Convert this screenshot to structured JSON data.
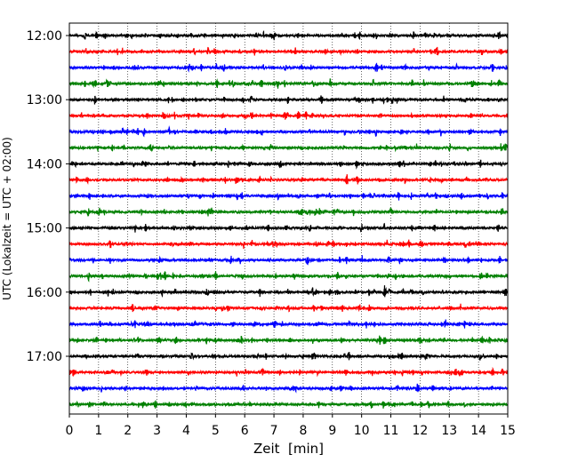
{
  "chart_data": {
    "type": "line",
    "title": "",
    "xlabel": "Zeit  [min]",
    "ylabel": "UTC (Lokalzeit = UTC + 02:00)",
    "xlim": [
      0,
      15
    ],
    "x_ticks": [
      "0",
      "1",
      "2",
      "3",
      "4",
      "5",
      "6",
      "7",
      "8",
      "9",
      "10",
      "11",
      "12",
      "13",
      "14",
      "15"
    ],
    "y_tick_labels": [
      "12:00",
      "13:00",
      "14:00",
      "15:00",
      "16:00",
      "17:00"
    ],
    "grid": "vertical dotted",
    "row_interval_minutes": 15,
    "trace_colors": [
      "#000000",
      "#ff0000",
      "#0000ff",
      "#008000"
    ],
    "traces": [
      {
        "start": "12:00",
        "color": "#000000"
      },
      {
        "start": "12:15",
        "color": "#ff0000"
      },
      {
        "start": "12:30",
        "color": "#0000ff"
      },
      {
        "start": "12:45",
        "color": "#008000"
      },
      {
        "start": "13:00",
        "color": "#000000"
      },
      {
        "start": "13:15",
        "color": "#ff0000"
      },
      {
        "start": "13:30",
        "color": "#0000ff"
      },
      {
        "start": "13:45",
        "color": "#008000"
      },
      {
        "start": "14:00",
        "color": "#000000"
      },
      {
        "start": "14:15",
        "color": "#ff0000",
        "events": [
          {
            "minute": 9.5,
            "amplitude": "large"
          }
        ]
      },
      {
        "start": "14:30",
        "color": "#0000ff"
      },
      {
        "start": "14:45",
        "color": "#008000"
      },
      {
        "start": "15:00",
        "color": "#000000"
      },
      {
        "start": "15:15",
        "color": "#ff0000"
      },
      {
        "start": "15:30",
        "color": "#0000ff"
      },
      {
        "start": "15:45",
        "color": "#008000"
      },
      {
        "start": "16:00",
        "color": "#000000",
        "events": [
          {
            "minute": 10.8,
            "amplitude": "large"
          }
        ]
      },
      {
        "start": "16:15",
        "color": "#ff0000"
      },
      {
        "start": "16:30",
        "color": "#0000ff"
      },
      {
        "start": "16:45",
        "color": "#008000"
      },
      {
        "start": "17:00",
        "color": "#000000"
      },
      {
        "start": "17:15",
        "color": "#ff0000"
      },
      {
        "start": "17:30",
        "color": "#0000ff"
      },
      {
        "start": "17:45",
        "color": "#008000"
      }
    ]
  }
}
